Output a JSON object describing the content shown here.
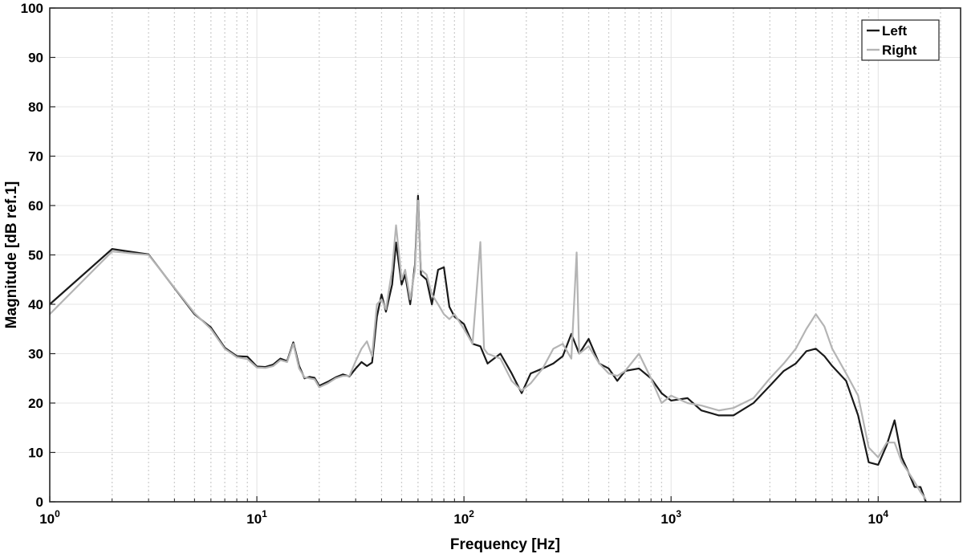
{
  "chart_data": {
    "type": "line",
    "xlabel": "Frequency [Hz]",
    "ylabel": "Magnitude [dB ref.1]",
    "x_scale": "log",
    "xlim": [
      1,
      25000
    ],
    "ylim": [
      0,
      100
    ],
    "y_ticks": [
      "0",
      "10",
      "20",
      "30",
      "40",
      "50",
      "60",
      "70",
      "80",
      "90",
      "100"
    ],
    "x_ticks": [
      {
        "base": "10",
        "exp": "0",
        "value": 1
      },
      {
        "base": "10",
        "exp": "1",
        "value": 10
      },
      {
        "base": "10",
        "exp": "2",
        "value": 100
      },
      {
        "base": "10",
        "exp": "3",
        "value": 1000
      },
      {
        "base": "10",
        "exp": "4",
        "value": 10000
      }
    ],
    "grid": true,
    "legend_position": "top-right",
    "series": [
      {
        "name": "Left",
        "color": "#1a1a1a",
        "points": [
          [
            1,
            40
          ],
          [
            2,
            51.2
          ],
          [
            3,
            50.1
          ],
          [
            5,
            38
          ],
          [
            6,
            35.3
          ],
          [
            7,
            31.2
          ],
          [
            8,
            29.5
          ],
          [
            9,
            29.4
          ],
          [
            10,
            27.4
          ],
          [
            11,
            27.3
          ],
          [
            12,
            27.8
          ],
          [
            13,
            29
          ],
          [
            14,
            28.5
          ],
          [
            15,
            32.3
          ],
          [
            16,
            27.5
          ],
          [
            17,
            25
          ],
          [
            18,
            25.3
          ],
          [
            19,
            25.1
          ],
          [
            20,
            23.5
          ],
          [
            22,
            24.3
          ],
          [
            24,
            25.2
          ],
          [
            26,
            25.8
          ],
          [
            28,
            25.4
          ],
          [
            30,
            27
          ],
          [
            32,
            28.3
          ],
          [
            34,
            27.5
          ],
          [
            36,
            28.2
          ],
          [
            38,
            37.5
          ],
          [
            40,
            42
          ],
          [
            42,
            38.5
          ],
          [
            45,
            44
          ],
          [
            47,
            52.5
          ],
          [
            50,
            44
          ],
          [
            52,
            46
          ],
          [
            55,
            40
          ],
          [
            58,
            48
          ],
          [
            60,
            62
          ],
          [
            62,
            46
          ],
          [
            66,
            45
          ],
          [
            70,
            40
          ],
          [
            75,
            47
          ],
          [
            80,
            47.5
          ],
          [
            85,
            39.5
          ],
          [
            90,
            37.5
          ],
          [
            100,
            36
          ],
          [
            110,
            32
          ],
          [
            120,
            31.5
          ],
          [
            130,
            28
          ],
          [
            150,
            30
          ],
          [
            170,
            26
          ],
          [
            190,
            22
          ],
          [
            210,
            26
          ],
          [
            240,
            27
          ],
          [
            270,
            28
          ],
          [
            300,
            29.5
          ],
          [
            330,
            34
          ],
          [
            360,
            30
          ],
          [
            400,
            33
          ],
          [
            450,
            28
          ],
          [
            500,
            27
          ],
          [
            550,
            24.5
          ],
          [
            600,
            26.5
          ],
          [
            700,
            27
          ],
          [
            800,
            25
          ],
          [
            900,
            22
          ],
          [
            1000,
            20.5
          ],
          [
            1200,
            21
          ],
          [
            1400,
            18.5
          ],
          [
            1700,
            17.5
          ],
          [
            2000,
            17.5
          ],
          [
            2500,
            20
          ],
          [
            3000,
            23.5
          ],
          [
            3500,
            26.5
          ],
          [
            4000,
            28
          ],
          [
            4500,
            30.5
          ],
          [
            5000,
            31
          ],
          [
            5500,
            29.5
          ],
          [
            6000,
            27.5
          ],
          [
            7000,
            24.5
          ],
          [
            8000,
            17.5
          ],
          [
            9000,
            8
          ],
          [
            10000,
            7.5
          ],
          [
            11000,
            11.5
          ],
          [
            12000,
            16.5
          ],
          [
            13000,
            9
          ],
          [
            14000,
            6
          ],
          [
            15000,
            3
          ],
          [
            16000,
            3
          ],
          [
            17000,
            0
          ]
        ]
      },
      {
        "name": "Right",
        "color": "#b4b4b4",
        "points": [
          [
            1,
            38
          ],
          [
            2,
            50.7
          ],
          [
            3,
            50
          ],
          [
            5,
            38.2
          ],
          [
            6,
            35
          ],
          [
            7,
            31
          ],
          [
            8,
            29.3
          ],
          [
            9,
            28.9
          ],
          [
            10,
            27.2
          ],
          [
            11,
            27.1
          ],
          [
            12,
            27.5
          ],
          [
            13,
            28.7
          ],
          [
            14,
            28.3
          ],
          [
            15,
            32
          ],
          [
            16,
            27
          ],
          [
            17,
            25.2
          ],
          [
            18,
            25
          ],
          [
            19,
            24.8
          ],
          [
            20,
            23.2
          ],
          [
            22,
            24
          ],
          [
            24,
            25
          ],
          [
            26,
            25.5
          ],
          [
            28,
            25.5
          ],
          [
            30,
            28.5
          ],
          [
            32,
            31
          ],
          [
            34,
            32.5
          ],
          [
            36,
            29.5
          ],
          [
            38,
            40
          ],
          [
            40,
            41
          ],
          [
            42,
            39
          ],
          [
            45,
            47
          ],
          [
            47,
            56
          ],
          [
            50,
            45
          ],
          [
            52,
            47
          ],
          [
            55,
            41
          ],
          [
            58,
            47
          ],
          [
            60,
            61
          ],
          [
            62,
            47
          ],
          [
            66,
            46
          ],
          [
            70,
            42
          ],
          [
            75,
            40
          ],
          [
            80,
            38
          ],
          [
            85,
            37
          ],
          [
            90,
            38
          ],
          [
            100,
            35
          ],
          [
            110,
            32
          ],
          [
            120,
            52.6
          ],
          [
            125,
            31
          ],
          [
            130,
            30
          ],
          [
            150,
            29
          ],
          [
            170,
            24.5
          ],
          [
            190,
            22.5
          ],
          [
            210,
            24
          ],
          [
            240,
            27
          ],
          [
            270,
            31
          ],
          [
            300,
            32
          ],
          [
            330,
            29
          ],
          [
            350,
            50.5
          ],
          [
            360,
            30
          ],
          [
            400,
            31.5
          ],
          [
            450,
            28
          ],
          [
            500,
            26
          ],
          [
            550,
            25.5
          ],
          [
            600,
            26.5
          ],
          [
            700,
            30
          ],
          [
            800,
            25
          ],
          [
            900,
            20
          ],
          [
            1000,
            21.5
          ],
          [
            1200,
            20
          ],
          [
            1400,
            19.5
          ],
          [
            1700,
            18.5
          ],
          [
            2000,
            19
          ],
          [
            2500,
            21
          ],
          [
            3000,
            25
          ],
          [
            3500,
            28
          ],
          [
            4000,
            31
          ],
          [
            4500,
            35
          ],
          [
            5000,
            38
          ],
          [
            5500,
            35.5
          ],
          [
            6000,
            31
          ],
          [
            7000,
            26
          ],
          [
            8000,
            21.5
          ],
          [
            9000,
            11
          ],
          [
            10000,
            9
          ],
          [
            11000,
            12
          ],
          [
            12000,
            12
          ],
          [
            13000,
            8
          ],
          [
            14000,
            6
          ],
          [
            15000,
            4
          ],
          [
            16000,
            2
          ],
          [
            17000,
            0.5
          ]
        ]
      }
    ]
  }
}
